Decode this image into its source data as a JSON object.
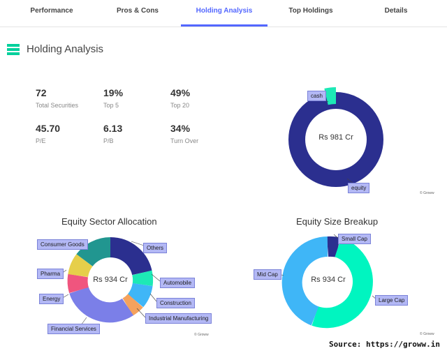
{
  "tabs": [
    {
      "label": "Performance",
      "active": false
    },
    {
      "label": "Pros & Cons",
      "active": false
    },
    {
      "label": "Holding Analysis",
      "active": true
    },
    {
      "label": "Top Holdings",
      "active": false
    },
    {
      "label": "Details",
      "active": false
    }
  ],
  "section": {
    "title": "Holding Analysis",
    "icon": "holding-analysis-icon",
    "icon_color": "#00d09c"
  },
  "stats": [
    {
      "value": "72",
      "label": "Total Securities"
    },
    {
      "value": "19%",
      "label": "Top 5"
    },
    {
      "value": "49%",
      "label": "Top 20"
    },
    {
      "value": "45.70",
      "label": "P/E"
    },
    {
      "value": "6.13",
      "label": "P/B"
    },
    {
      "value": "34%",
      "label": "Turn Over"
    }
  ],
  "charts": {
    "asset": {
      "center": "Rs 981 Cr",
      "labels": {
        "cash": "cash",
        "equity": "equity"
      },
      "credit": "© Groww"
    },
    "sector": {
      "title": "Equity Sector Allocation",
      "center": "Rs 934 Cr",
      "credit": "© Groww",
      "labels": {
        "others": "Others",
        "automobile": "Automobile",
        "construction": "Construction",
        "industrial": "Industrial Manufacturing",
        "financial": "Financial Services",
        "energy": "Energy",
        "pharma": "Pharma",
        "consumer": "Consumer Goods"
      }
    },
    "size": {
      "title": "Equity Size Breakup",
      "center": "Rs 934 Cr",
      "credit": "© Groww",
      "labels": {
        "small": "Small Cap",
        "mid": "Mid Cap",
        "large": "Large Cap"
      }
    }
  },
  "source": "Source: https://groww.in",
  "colors": {
    "accent": "#5367ff",
    "navy": "#2b2f8f",
    "teal": "#1de9b6",
    "sky": "#3fb6f7",
    "mint": "#00f5c0"
  }
}
